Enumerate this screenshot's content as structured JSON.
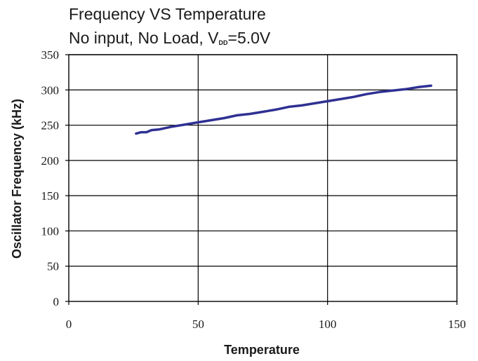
{
  "chart_data": {
    "type": "line",
    "title": "Frequency VS Temperature",
    "subtitle": {
      "prefix": "No input, No Load, V",
      "subscript": "DD",
      "suffix": "=5.0V"
    },
    "xlabel": "Temperature",
    "ylabel": "Oscillator Frequency (kHz)",
    "xlim": [
      0,
      150
    ],
    "ylim": [
      0,
      350
    ],
    "x_ticks": [
      0,
      50,
      100,
      150
    ],
    "y_ticks": [
      0,
      50,
      100,
      150,
      200,
      250,
      300,
      350
    ],
    "x_tick_labels": [
      "0",
      "50",
      "100",
      "150"
    ],
    "y_tick_labels": [
      "0",
      "50",
      "100",
      "150",
      "200",
      "250",
      "300",
      "350"
    ],
    "grid": true,
    "line_color": "#2e3192",
    "series": [
      {
        "x": [
          26,
          28,
          30,
          32,
          35,
          40,
          45,
          50,
          55,
          60,
          65,
          70,
          75,
          80,
          85,
          90,
          95,
          100,
          105,
          110,
          115,
          120,
          125,
          130,
          135,
          140
        ],
        "values": [
          238,
          240,
          240,
          243,
          244,
          248,
          251,
          254,
          257,
          260,
          264,
          266,
          269,
          272,
          276,
          278,
          281,
          284,
          287,
          290,
          294,
          297,
          299,
          301,
          304,
          306
        ]
      }
    ]
  }
}
